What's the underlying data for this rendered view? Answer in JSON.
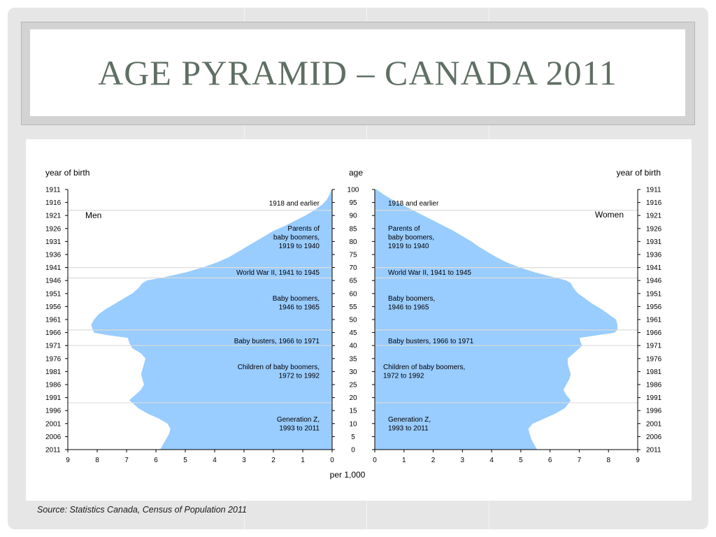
{
  "slide": {
    "title": "AGE PYRAMID – CANADA 2011",
    "source": "Source: Statistics Canada, Census of Population 2011"
  },
  "chart_data": {
    "type": "bar",
    "orientation": "horizontal-back-to-back",
    "colors": {
      "bars": "#99ccff",
      "reference_lines": "#dcdcdc",
      "title": "#5f6f63"
    },
    "left_axis_title": "year of birth",
    "center_axis_title": "age",
    "right_axis_title": "year of birth",
    "xlabel": "per 1,000",
    "x_range": [
      0,
      9
    ],
    "x_ticks_men": [
      "9",
      "8",
      "7",
      "6",
      "5",
      "4",
      "3",
      "2",
      "1",
      "0"
    ],
    "x_ticks_women": [
      "0",
      "1",
      "2",
      "3",
      "4",
      "5",
      "6",
      "7",
      "8",
      "9"
    ],
    "age_range": [
      0,
      100
    ],
    "age_ticks": [
      "100",
      "95",
      "90",
      "85",
      "80",
      "75",
      "70",
      "65",
      "60",
      "55",
      "50",
      "45",
      "40",
      "35",
      "30",
      "25",
      "20",
      "15",
      "10",
      "5",
      "0"
    ],
    "year_ticks": [
      "1911",
      "1916",
      "1921",
      "1926",
      "1931",
      "1936",
      "1941",
      "1946",
      "1951",
      "1956",
      "1961",
      "1966",
      "1971",
      "1976",
      "1981",
      "1986",
      "1991",
      "1996",
      "2001",
      "2006",
      "2011"
    ],
    "series": [
      {
        "name": "Men",
        "ages": [
          0,
          2,
          4,
          6,
          8,
          10,
          12,
          14,
          16,
          18,
          19,
          21,
          23,
          25,
          27,
          29,
          31,
          33,
          35,
          37,
          39,
          40,
          41,
          43,
          44,
          45,
          46,
          48,
          50,
          52,
          54,
          56,
          58,
          60,
          62,
          64,
          65,
          66,
          68,
          70,
          72,
          74,
          76,
          78,
          80,
          82,
          84,
          86,
          88,
          90,
          92,
          94,
          96,
          98,
          100
        ],
        "values": [
          5.85,
          5.75,
          5.65,
          5.55,
          5.5,
          5.6,
          5.9,
          6.3,
          6.6,
          6.8,
          6.9,
          6.7,
          6.5,
          6.4,
          6.45,
          6.5,
          6.45,
          6.4,
          6.35,
          6.5,
          6.8,
          6.85,
          6.9,
          6.95,
          7.6,
          8.1,
          8.15,
          8.2,
          8.1,
          7.95,
          7.7,
          7.4,
          7.1,
          6.8,
          6.6,
          6.45,
          6.3,
          5.8,
          5.0,
          4.4,
          3.9,
          3.5,
          3.2,
          2.9,
          2.6,
          2.3,
          2.0,
          1.6,
          1.25,
          0.9,
          0.6,
          0.35,
          0.18,
          0.08,
          0.02
        ]
      },
      {
        "name": "Women",
        "ages": [
          0,
          2,
          4,
          6,
          8,
          10,
          12,
          14,
          16,
          18,
          19,
          21,
          23,
          25,
          27,
          29,
          31,
          33,
          35,
          37,
          39,
          40,
          41,
          43,
          44,
          45,
          46,
          48,
          50,
          52,
          54,
          56,
          58,
          60,
          62,
          64,
          65,
          66,
          68,
          70,
          72,
          74,
          76,
          78,
          80,
          82,
          84,
          86,
          88,
          90,
          92,
          94,
          96,
          98,
          100
        ],
        "values": [
          5.55,
          5.45,
          5.35,
          5.3,
          5.25,
          5.4,
          5.8,
          6.2,
          6.5,
          6.65,
          6.7,
          6.55,
          6.45,
          6.55,
          6.65,
          6.7,
          6.65,
          6.6,
          6.6,
          6.8,
          7.0,
          7.1,
          7.05,
          7.0,
          7.6,
          8.2,
          8.3,
          8.3,
          8.25,
          8.0,
          7.75,
          7.45,
          7.2,
          6.95,
          6.8,
          6.7,
          6.55,
          6.2,
          5.5,
          4.95,
          4.5,
          4.15,
          3.85,
          3.55,
          3.3,
          3.0,
          2.7,
          2.35,
          2.0,
          1.65,
          1.3,
          0.95,
          0.6,
          0.3,
          0.05
        ]
      }
    ],
    "series_labels": {
      "men": "Men",
      "women": "Women"
    },
    "reference_line_ages": [
      92,
      70,
      66,
      46,
      40,
      18
    ],
    "annotations": {
      "a1918": [
        "1918 and earlier"
      ],
      "parents": [
        "Parents of",
        "baby boomers,",
        "1919 to 1940"
      ],
      "ww2": [
        "World War II, 1941 to 1945"
      ],
      "boomers": [
        "Baby boomers,",
        "1946 to 1965"
      ],
      "busters": [
        "Baby busters, 1966 to 1971"
      ],
      "children": [
        "Children of baby boomers,",
        "1972 to 1992"
      ],
      "genz": [
        "Generation Z,",
        "1993 to 2011"
      ]
    },
    "grid": false,
    "legend": "none"
  }
}
